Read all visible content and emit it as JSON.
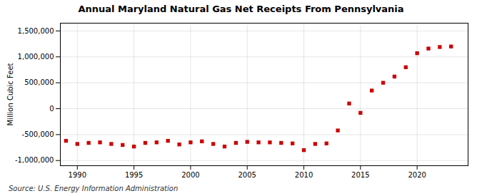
{
  "chart_data": {
    "type": "scatter",
    "title": "Annual Maryland Natural Gas Net Receipts From Pennsylvania",
    "ylabel": "Million Cubic Feet",
    "annotations": [
      "Source: U.S. Energy Information Administration"
    ],
    "x": [
      1989,
      1990,
      1991,
      1992,
      1993,
      1994,
      1995,
      1996,
      1997,
      1998,
      1999,
      2000,
      2001,
      2002,
      2003,
      2004,
      2005,
      2006,
      2007,
      2008,
      2009,
      2010,
      2011,
      2012,
      2013,
      2014,
      2015,
      2016,
      2017,
      2018,
      2019,
      2020,
      2021,
      2022,
      2023
    ],
    "values": [
      -620000,
      -680000,
      -660000,
      -650000,
      -680000,
      -700000,
      -730000,
      -660000,
      -650000,
      -620000,
      -690000,
      -650000,
      -630000,
      -680000,
      -730000,
      -660000,
      -640000,
      -650000,
      -650000,
      -660000,
      -670000,
      -800000,
      -680000,
      -670000,
      -420000,
      100000,
      -80000,
      350000,
      500000,
      620000,
      800000,
      1070000,
      1160000,
      1190000,
      1200000
    ],
    "color": "#cc0000",
    "marker": "square",
    "xlim": [
      1988.5,
      2024.5
    ],
    "xticks": [
      1990,
      1995,
      2000,
      2005,
      2010,
      2015,
      2020
    ],
    "ylim": [
      -1100000,
      1650000
    ],
    "yticks": [
      {
        "value": -1000000,
        "label": "-1,000,000"
      },
      {
        "value": -500000,
        "label": "-500,000"
      },
      0,
      {
        "value": 500000,
        "label": "500,000"
      },
      {
        "value": 1000000,
        "label": "1,000,000"
      },
      {
        "value": 1500000,
        "label": "1,500,000"
      }
    ],
    "grid": true
  }
}
